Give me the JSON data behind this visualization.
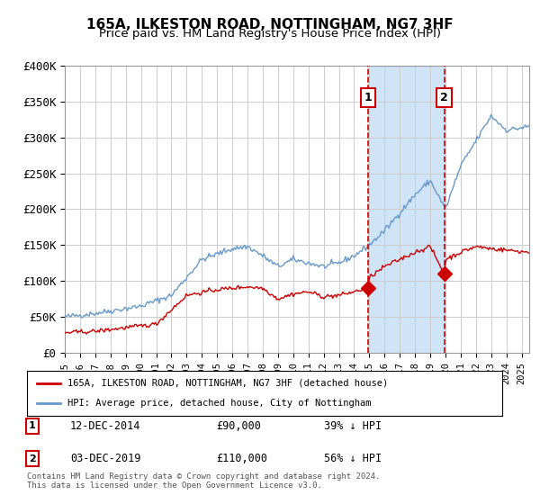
{
  "title": "165A, ILKESTON ROAD, NOTTINGHAM, NG7 3HF",
  "subtitle": "Price paid vs. HM Land Registry's House Price Index (HPI)",
  "legend_label_red": "165A, ILKESTON ROAD, NOTTINGHAM, NG7 3HF (detached house)",
  "legend_label_blue": "HPI: Average price, detached house, City of Nottingham",
  "footnote": "Contains HM Land Registry data © Crown copyright and database right 2024.\nThis data is licensed under the Open Government Licence v3.0.",
  "annotation1_label": "1",
  "annotation1_date": "12-DEC-2014",
  "annotation1_price": "£90,000",
  "annotation1_hpi": "39% ↓ HPI",
  "annotation2_label": "2",
  "annotation2_date": "03-DEC-2019",
  "annotation2_price": "£110,000",
  "annotation2_hpi": "56% ↓ HPI",
  "vline1_x": 2014.92,
  "vline2_x": 2019.92,
  "marker1_x": 2014.92,
  "marker1_y": 90000,
  "marker2_x": 2019.92,
  "marker2_y": 110000,
  "ylim": [
    0,
    400000
  ],
  "xlim": [
    1995,
    2025.5
  ],
  "background_color": "#ffffff",
  "plot_bg_color": "#ffffff",
  "grid_color": "#cccccc",
  "shaded_region_color": "#d0e4f7",
  "red_line_color": "#cc0000",
  "blue_line_color": "#6699cc",
  "vline_color": "#cc0000",
  "title_color": "#000000",
  "ytick_labels": [
    "£0",
    "£50K",
    "£100K",
    "£150K",
    "£200K",
    "£250K",
    "£300K",
    "£350K",
    "£400K"
  ],
  "ytick_values": [
    0,
    50000,
    100000,
    150000,
    200000,
    250000,
    300000,
    350000,
    400000
  ]
}
